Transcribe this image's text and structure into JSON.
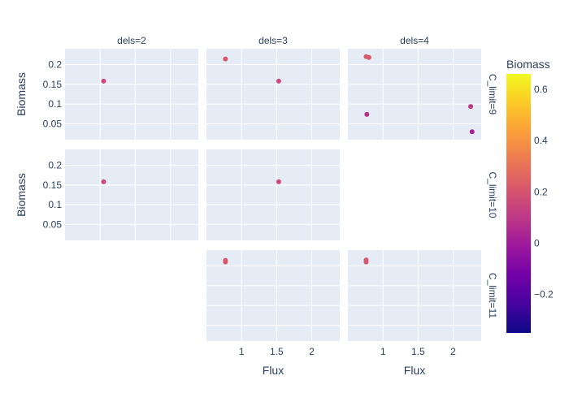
{
  "chart_data": {
    "type": "scatter",
    "xlabel": "Flux",
    "ylabel": "Biomass",
    "xlim": [
      0.5,
      2.4
    ],
    "ylim": [
      0.01,
      0.24
    ],
    "x_ticks": [
      1,
      1.5,
      2
    ],
    "x_tick_labels": [
      "1",
      "1.5",
      "2"
    ],
    "y_ticks": [
      0.05,
      0.1,
      0.15,
      0.2
    ],
    "y_tick_labels": [
      "0.05",
      "0.1",
      "0.15",
      "0.2"
    ],
    "col_facets": [
      "dels=2",
      "dels=3",
      "dels=4"
    ],
    "row_facets": [
      "C_limit=9",
      "C_limit=10",
      "C_limit=11"
    ],
    "colorbar": {
      "title": "Biomass",
      "range": [
        -0.35,
        0.66
      ],
      "ticks": [
        0.6,
        0.4,
        0.2,
        0,
        -0.2
      ],
      "tick_labels": [
        "0.6",
        "0.4",
        "0.2",
        "0",
        "−0.2"
      ],
      "colors": [
        "#0d0887",
        "#46039f",
        "#7201a8",
        "#9c179e",
        "#bd3786",
        "#d8576b",
        "#ed7953",
        "#fb9f3a",
        "#fdca26",
        "#f0f921"
      ]
    },
    "panels": [
      {
        "row": 0,
        "col": 0,
        "points": [
          {
            "x": 1.05,
            "y": 0.158
          }
        ]
      },
      {
        "row": 0,
        "col": 1,
        "points": [
          {
            "x": 0.77,
            "y": 0.214
          },
          {
            "x": 1.53,
            "y": 0.158
          }
        ]
      },
      {
        "row": 0,
        "col": 2,
        "points": [
          {
            "x": 0.76,
            "y": 0.22
          },
          {
            "x": 0.8,
            "y": 0.218
          },
          {
            "x": 0.77,
            "y": 0.074
          },
          {
            "x": 2.25,
            "y": 0.094
          },
          {
            "x": 2.27,
            "y": 0.03
          }
        ]
      },
      {
        "row": 1,
        "col": 0,
        "points": [
          {
            "x": 1.05,
            "y": 0.158
          }
        ]
      },
      {
        "row": 1,
        "col": 1,
        "points": [
          {
            "x": 1.53,
            "y": 0.158
          }
        ]
      },
      {
        "row": 2,
        "col": 1,
        "points": [
          {
            "x": 0.77,
            "y": 0.214
          },
          {
            "x": 0.77,
            "y": 0.21
          }
        ]
      },
      {
        "row": 2,
        "col": 2,
        "points": [
          {
            "x": 0.76,
            "y": 0.215
          },
          {
            "x": 0.76,
            "y": 0.21
          }
        ]
      }
    ]
  }
}
